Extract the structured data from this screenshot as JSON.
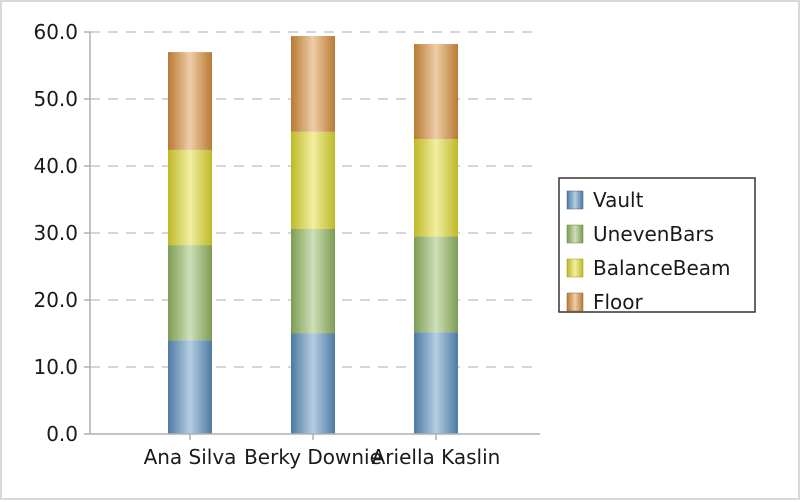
{
  "chart_data": {
    "type": "bar",
    "stacked": true,
    "categories": [
      "Ana Silva",
      "Berky Downie",
      "Ariella Kaslin"
    ],
    "series": [
      {
        "name": "Vault",
        "values": [
          14.0,
          15.0,
          15.2
        ],
        "color": "#5b8fbf"
      },
      {
        "name": "UnevenBars",
        "values": [
          14.2,
          15.6,
          14.3
        ],
        "color": "#93b862"
      },
      {
        "name": "BalanceBeam",
        "values": [
          14.2,
          14.5,
          14.5
        ],
        "color": "#e0da2e"
      },
      {
        "name": "Floor",
        "values": [
          14.6,
          14.3,
          14.2
        ],
        "color": "#d98f3c"
      }
    ],
    "ylim": [
      0,
      60
    ],
    "yticks": [
      "0.0",
      "10.0",
      "20.0",
      "30.0",
      "40.0",
      "50.0",
      "60.0"
    ],
    "grid": true,
    "legend_position": "right"
  }
}
